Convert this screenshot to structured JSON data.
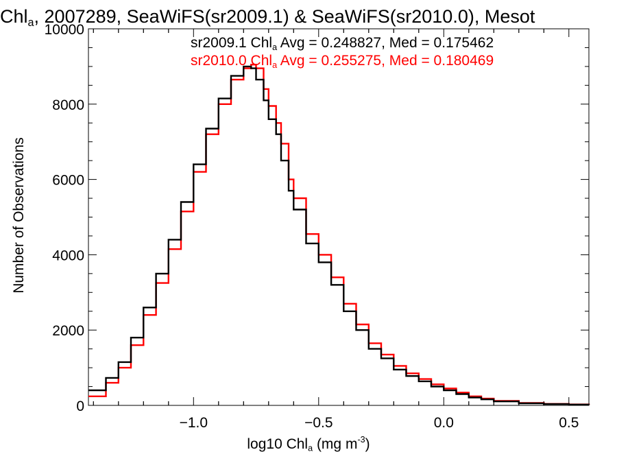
{
  "chart_data": {
    "type": "line",
    "title_parts": [
      "Chl",
      "a",
      ", 2007289, SeaWiFS(sr2009.1) & SeaWiFS(sr2010.0), Mesot"
    ],
    "xlabel_parts": [
      "log10 Chl",
      "a",
      " (mg m",
      "-3",
      ")"
    ],
    "ylabel": "Number of Observations",
    "xlim": [
      -1.42,
      0.58
    ],
    "ylim": [
      0,
      10000
    ],
    "x_ticks": [
      -1.0,
      -0.5,
      0.0,
      0.5
    ],
    "x_tick_labels": [
      "−1.0",
      "−0.5",
      "0.0",
      "0.5"
    ],
    "y_ticks": [
      0,
      2000,
      4000,
      6000,
      8000,
      10000
    ],
    "y_tick_labels": [
      "0",
      "2000",
      "4000",
      "6000",
      "8000",
      "10000"
    ],
    "grid": false,
    "legend_position": "top-right",
    "series": [
      {
        "name": "sr2009.1",
        "color": "#000000",
        "legend_parts": [
          "sr2009.1 Chl",
          "a",
          " Avg = 0.248827, Med = 0.175462"
        ],
        "x": [
          -1.42,
          -1.35,
          -1.3,
          -1.25,
          -1.2,
          -1.15,
          -1.1,
          -1.05,
          -1.0,
          -0.95,
          -0.9,
          -0.85,
          -0.8,
          -0.77,
          -0.75,
          -0.72,
          -0.7,
          -0.67,
          -0.65,
          -0.62,
          -0.6,
          -0.55,
          -0.5,
          -0.45,
          -0.4,
          -0.35,
          -0.3,
          -0.25,
          -0.2,
          -0.15,
          -0.1,
          -0.05,
          0.0,
          0.05,
          0.1,
          0.15,
          0.2,
          0.3,
          0.4,
          0.5,
          0.58
        ],
        "values": [
          400,
          730,
          1150,
          1800,
          2600,
          3500,
          4400,
          5400,
          6400,
          7350,
          8150,
          8750,
          9000,
          8950,
          8650,
          8100,
          7600,
          7200,
          6500,
          5700,
          5200,
          4300,
          3800,
          3200,
          2500,
          2000,
          1500,
          1250,
          950,
          780,
          640,
          500,
          400,
          300,
          210,
          160,
          105,
          55,
          35,
          22,
          12
        ]
      },
      {
        "name": "sr2010.0",
        "color": "#ff0000",
        "legend_parts": [
          "sr2010.0 Chl",
          "a",
          " Avg = 0.255275, Med = 0.180469"
        ],
        "x": [
          -1.42,
          -1.35,
          -1.3,
          -1.25,
          -1.2,
          -1.15,
          -1.1,
          -1.05,
          -1.0,
          -0.95,
          -0.9,
          -0.85,
          -0.8,
          -0.77,
          -0.75,
          -0.72,
          -0.7,
          -0.67,
          -0.65,
          -0.62,
          -0.6,
          -0.55,
          -0.5,
          -0.45,
          -0.4,
          -0.35,
          -0.3,
          -0.25,
          -0.2,
          -0.15,
          -0.1,
          -0.05,
          0.0,
          0.05,
          0.1,
          0.15,
          0.2,
          0.3,
          0.4,
          0.5,
          0.58
        ],
        "values": [
          240,
          600,
          1000,
          1600,
          2400,
          3250,
          4150,
          5150,
          6200,
          7200,
          8000,
          8650,
          8950,
          9050,
          8950,
          8400,
          7950,
          7500,
          6950,
          6000,
          5500,
          4550,
          4000,
          3400,
          2700,
          2150,
          1650,
          1350,
          1050,
          850,
          700,
          560,
          450,
          340,
          240,
          180,
          120,
          65,
          40,
          25,
          15
        ]
      }
    ]
  }
}
